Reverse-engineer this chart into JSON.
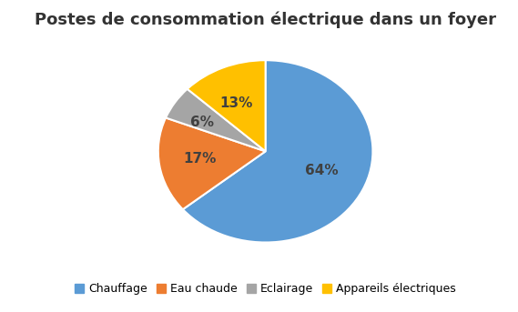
{
  "title": "Postes de consommation électrique dans un foyer",
  "labels": [
    "Chauffage",
    "Eau chaude",
    "Eclairage",
    "Appareils électriques"
  ],
  "values": [
    64,
    17,
    6,
    13
  ],
  "colors": [
    "#5B9BD5",
    "#ED7D31",
    "#A5A5A5",
    "#FFC000"
  ],
  "pct_labels": [
    "64%",
    "17%",
    "6%",
    "13%"
  ],
  "startangle": 90,
  "background_color": "#FFFFFF",
  "title_fontsize": 13,
  "legend_fontsize": 9,
  "pct_fontsize": 11,
  "pct_color": "#404040"
}
